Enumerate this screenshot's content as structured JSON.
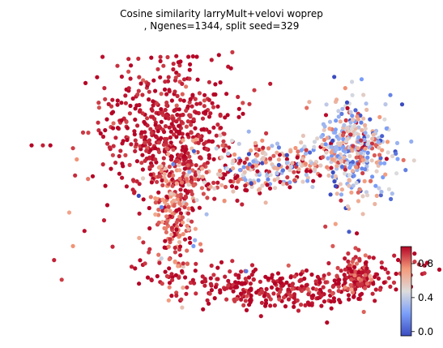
{
  "chart_data": {
    "type": "scatter",
    "title_line1": "Cosine similarity larryMult+velovi woprep",
    "title_line2": ", Ngenes=1344, split seed=329",
    "xlabel": "",
    "ylabel": "",
    "axes_visible": false,
    "colormap": "coolwarm",
    "colorbar": {
      "vmin": -0.05,
      "vmax": 1.0,
      "ticks": [
        0.0,
        0.4,
        0.8
      ],
      "tick_labels": [
        "0.0",
        "0.4",
        "0.8"
      ],
      "placement": "right"
    },
    "embedding_xlim": [
      0,
      100
    ],
    "embedding_ylim": [
      0,
      100
    ],
    "n_points_approx": 1900,
    "regions": [
      {
        "name": "upper-left dense cluster",
        "cx": 40,
        "cy": 68,
        "spread_x": 9,
        "spread_y": 13,
        "n": 520,
        "mean_value": 0.96,
        "value_sd": 0.05
      },
      {
        "name": "left stem",
        "cx": 41,
        "cy": 40,
        "spread_x": 3,
        "spread_y": 12,
        "n": 220,
        "mean_value": 0.85,
        "value_sd": 0.15
      },
      {
        "name": "middle band",
        "cx": 66,
        "cy": 56,
        "spread_x": 13,
        "spread_y": 5,
        "n": 320,
        "mean_value": 0.65,
        "value_sd": 0.3
      },
      {
        "name": "right arm",
        "cx": 89,
        "cy": 63,
        "spread_x": 5,
        "spread_y": 9,
        "n": 320,
        "mean_value": 0.45,
        "value_sd": 0.3
      },
      {
        "name": "bottom arc",
        "cx": 70,
        "cy": 12,
        "spread_x": 18,
        "spread_y": 4,
        "n": 380,
        "mean_value": 0.97,
        "value_sd": 0.05
      },
      {
        "name": "right bottom tip",
        "cx": 90,
        "cy": 17,
        "spread_x": 2,
        "spread_y": 4,
        "n": 90,
        "mean_value": 0.93,
        "value_sd": 0.1
      }
    ],
    "outliers": [
      {
        "x": 3,
        "y": 64,
        "v": 1.0
      },
      {
        "x": 6,
        "y": 64,
        "v": 0.95
      },
      {
        "x": 8,
        "y": 64,
        "v": 1.0
      },
      {
        "x": 14,
        "y": 63,
        "v": 0.9
      },
      {
        "x": 15,
        "y": 59,
        "v": 0.75
      },
      {
        "x": 18,
        "y": 52,
        "v": 0.8
      },
      {
        "x": 13,
        "y": 40,
        "v": 0.7
      },
      {
        "x": 14,
        "y": 28,
        "v": 0.75
      },
      {
        "x": 9,
        "y": 23,
        "v": 0.95
      },
      {
        "x": 11,
        "y": 16,
        "v": 0.9
      },
      {
        "x": 34,
        "y": 86,
        "v": 0.95
      },
      {
        "x": 45,
        "y": 91,
        "v": 1.0
      },
      {
        "x": 44,
        "y": 85,
        "v": 0.8
      },
      {
        "x": 81,
        "y": 35,
        "v": 0.9
      },
      {
        "x": 83,
        "y": 28,
        "v": 0.85
      },
      {
        "x": 60,
        "y": 19,
        "v": 0.1
      },
      {
        "x": 62,
        "y": 16,
        "v": 0.95
      },
      {
        "x": 46,
        "y": 28,
        "v": 0.2
      }
    ]
  }
}
